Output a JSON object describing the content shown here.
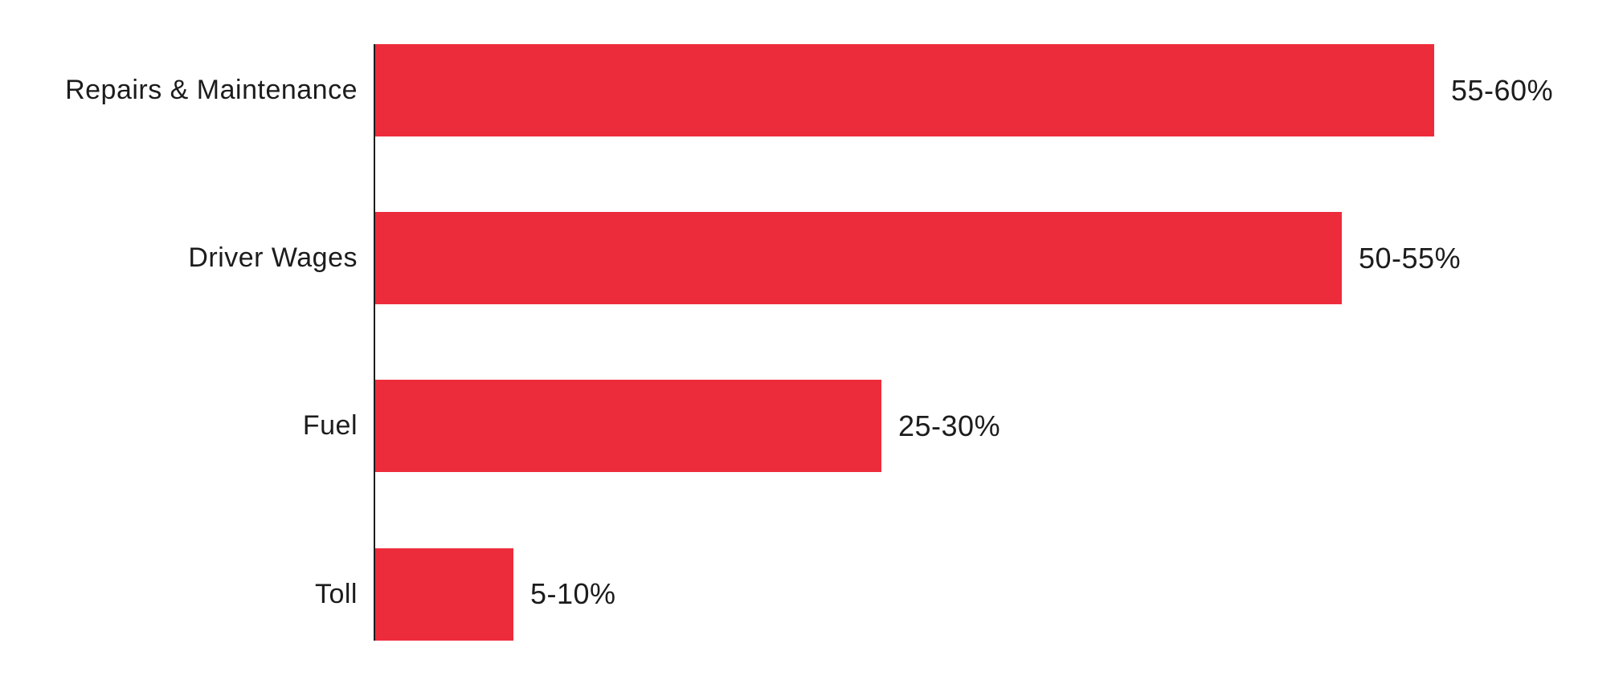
{
  "chart_data": {
    "type": "bar",
    "orientation": "horizontal",
    "title": "",
    "categories": [
      "Repairs & Maintenance",
      "Driver Wages",
      "Fuel",
      "Toll"
    ],
    "values": [
      57.5,
      52.5,
      27.5,
      7.5
    ],
    "value_labels": [
      "55-60%",
      "50-55%",
      "25-30%",
      "5-10%"
    ],
    "value_ranges": [
      [
        55,
        60
      ],
      [
        50,
        55
      ],
      [
        25,
        30
      ],
      [
        5,
        10
      ]
    ],
    "xlabel": "",
    "ylabel": "",
    "xlim": [
      0,
      60
    ],
    "grid": false,
    "legend": false,
    "colors": {
      "bar": "#ED2C3B",
      "axis": "#1C1C1C",
      "text": "#1C1C1C",
      "background": "#FFFFFF"
    }
  }
}
